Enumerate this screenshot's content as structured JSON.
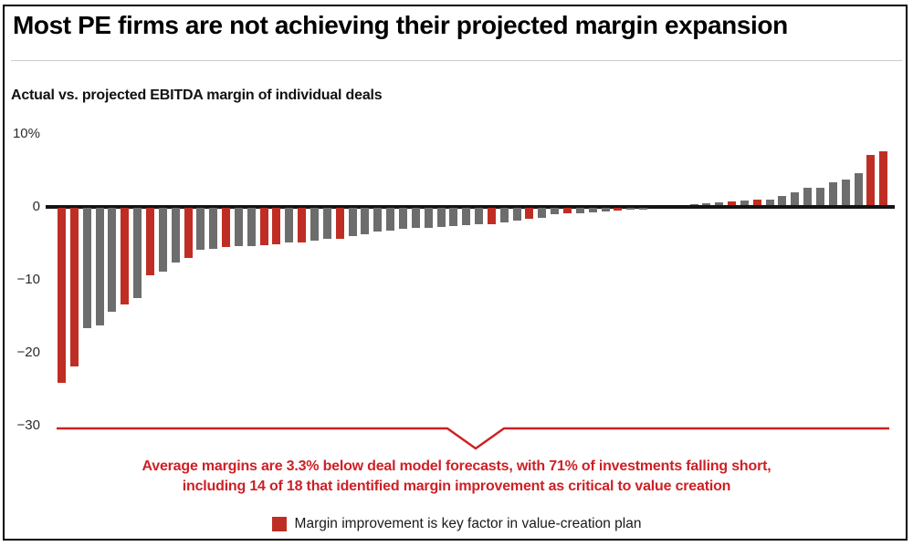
{
  "page": {
    "title": "Most PE firms are not achieving their projected margin expansion"
  },
  "chart": {
    "subtitle": "Actual vs. projected EBITDA margin of individual deals",
    "annotation": {
      "line1": "Average margins are 3.3% below deal model forecasts, with 71% of investments falling short,",
      "line2": "including 14 of 18 that identified margin improvement as critical to value creation"
    },
    "legend": {
      "label": "Margin improvement is key factor in value-creation plan"
    }
  },
  "colors": {
    "bar_gray": "#6d6d6d",
    "bar_red": "#bf2e25",
    "annotation_red": "#cd2026",
    "axis_black": "#141414"
  },
  "chart_data": {
    "type": "bar",
    "title": "Actual vs. projected EBITDA margin of individual deals",
    "xlabel": "",
    "ylabel": "",
    "unit": "%",
    "ylim": [
      -30,
      10
    ],
    "grid": false,
    "legend_position": "bottom",
    "yticks": [
      {
        "label": "10%",
        "v": 10
      },
      {
        "label": "0",
        "v": 0
      },
      {
        "label": "−10",
        "v": -10
      },
      {
        "label": "−20",
        "v": -20
      },
      {
        "label": "−30",
        "v": -30
      }
    ],
    "legend": [
      {
        "label": "Margin improvement is key factor in value-creation plan",
        "color": "#bf2e25"
      }
    ],
    "stats_from_annotation": {
      "average_margin_vs_forecast_pct": -3.3,
      "share_of_investments_falling_short_pct": 71,
      "key_factor_deals_falling_short": 14,
      "key_factor_deals_total": 18
    },
    "bars": [
      {
        "v": -24.0,
        "key": true
      },
      {
        "v": -21.8,
        "key": true
      },
      {
        "v": -16.5,
        "key": false
      },
      {
        "v": -16.1,
        "key": false
      },
      {
        "v": -14.3,
        "key": false
      },
      {
        "v": -13.2,
        "key": true
      },
      {
        "v": -12.4,
        "key": false
      },
      {
        "v": -9.2,
        "key": true
      },
      {
        "v": -8.7,
        "key": false
      },
      {
        "v": -7.5,
        "key": false
      },
      {
        "v": -6.9,
        "key": true
      },
      {
        "v": -5.8,
        "key": false
      },
      {
        "v": -5.6,
        "key": false
      },
      {
        "v": -5.4,
        "key": true
      },
      {
        "v": -5.3,
        "key": false
      },
      {
        "v": -5.2,
        "key": false
      },
      {
        "v": -5.1,
        "key": true
      },
      {
        "v": -5.0,
        "key": true
      },
      {
        "v": -4.8,
        "key": false
      },
      {
        "v": -4.7,
        "key": true
      },
      {
        "v": -4.5,
        "key": false
      },
      {
        "v": -4.3,
        "key": false
      },
      {
        "v": -4.2,
        "key": true
      },
      {
        "v": -3.9,
        "key": false
      },
      {
        "v": -3.6,
        "key": false
      },
      {
        "v": -3.3,
        "key": false
      },
      {
        "v": -3.1,
        "key": false
      },
      {
        "v": -2.9,
        "key": false
      },
      {
        "v": -2.8,
        "key": false
      },
      {
        "v": -2.7,
        "key": false
      },
      {
        "v": -2.6,
        "key": false
      },
      {
        "v": -2.5,
        "key": false
      },
      {
        "v": -2.4,
        "key": false
      },
      {
        "v": -2.3,
        "key": false
      },
      {
        "v": -2.2,
        "key": true
      },
      {
        "v": -2.0,
        "key": false
      },
      {
        "v": -1.8,
        "key": false
      },
      {
        "v": -1.5,
        "key": true
      },
      {
        "v": -1.4,
        "key": false
      },
      {
        "v": -0.9,
        "key": false
      },
      {
        "v": -0.7,
        "key": true
      },
      {
        "v": -0.7,
        "key": false
      },
      {
        "v": -0.6,
        "key": false
      },
      {
        "v": -0.5,
        "key": false
      },
      {
        "v": -0.4,
        "key": true
      },
      {
        "v": -0.3,
        "key": false
      },
      {
        "v": -0.2,
        "key": false
      },
      {
        "v": 0,
        "key": false
      },
      {
        "v": 0,
        "key": false
      },
      {
        "v": 0,
        "key": false
      },
      {
        "v": 0.1,
        "key": false
      },
      {
        "v": 0.2,
        "key": false
      },
      {
        "v": 0.4,
        "key": false
      },
      {
        "v": 0.5,
        "key": true
      },
      {
        "v": 0.6,
        "key": false
      },
      {
        "v": 0.8,
        "key": true
      },
      {
        "v": 0.8,
        "key": false
      },
      {
        "v": 1.3,
        "key": false
      },
      {
        "v": 1.8,
        "key": false
      },
      {
        "v": 2.4,
        "key": false
      },
      {
        "v": 2.4,
        "key": false
      },
      {
        "v": 3.1,
        "key": false
      },
      {
        "v": 3.5,
        "key": false
      },
      {
        "v": 4.4,
        "key": false
      },
      {
        "v": 6.9,
        "key": true
      },
      {
        "v": 7.4,
        "key": true
      }
    ]
  }
}
